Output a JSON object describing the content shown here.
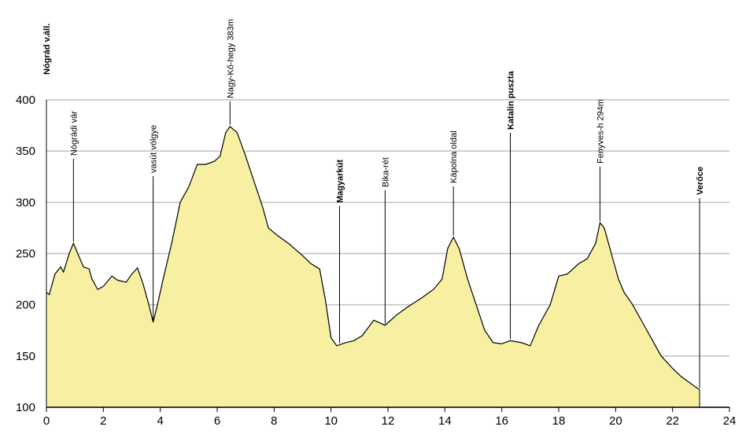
{
  "chart_data": {
    "type": "area",
    "color": "#f7f0a3",
    "x": [
      0,
      0.1,
      0.3,
      0.5,
      0.6,
      0.8,
      0.95,
      1.1,
      1.3,
      1.5,
      1.6,
      1.8,
      2.0,
      2.3,
      2.5,
      2.8,
      3.0,
      3.2,
      3.4,
      3.6,
      3.75,
      3.9,
      4.1,
      4.4,
      4.7,
      5.0,
      5.3,
      5.6,
      5.9,
      6.1,
      6.3,
      6.45,
      6.7,
      7.0,
      7.3,
      7.6,
      7.8,
      8.1,
      8.5,
      9.0,
      9.3,
      9.6,
      9.8,
      10.0,
      10.2,
      10.5,
      10.8,
      11.1,
      11.5,
      11.9,
      12.3,
      12.7,
      13.2,
      13.6,
      13.9,
      14.1,
      14.3,
      14.5,
      14.8,
      15.1,
      15.4,
      15.7,
      16.0,
      16.3,
      16.7,
      17.0,
      17.3,
      17.7,
      18.0,
      18.3,
      18.7,
      19.0,
      19.3,
      19.45,
      19.6,
      19.9,
      20.1,
      20.3,
      20.6,
      21.0,
      21.3,
      21.6,
      22.0,
      22.3,
      22.8,
      22.95
    ],
    "values": [
      212,
      210,
      230,
      237,
      232,
      250,
      260,
      250,
      237,
      235,
      225,
      215,
      218,
      228,
      224,
      222,
      230,
      236,
      220,
      200,
      183,
      200,
      225,
      260,
      300,
      315,
      337,
      337,
      340,
      345,
      368,
      374,
      368,
      345,
      320,
      295,
      275,
      268,
      260,
      248,
      240,
      235,
      205,
      168,
      160,
      163,
      165,
      170,
      185,
      180,
      190,
      198,
      207,
      215,
      225,
      255,
      266,
      255,
      225,
      200,
      175,
      163,
      162,
      165,
      163,
      160,
      180,
      200,
      228,
      230,
      240,
      245,
      260,
      280,
      275,
      245,
      225,
      212,
      200,
      180,
      165,
      150,
      138,
      130,
      120,
      117
    ],
    "xlim": [
      0,
      24
    ],
    "ylim": [
      100,
      400
    ],
    "xticks": [
      0,
      2,
      4,
      6,
      8,
      10,
      12,
      14,
      16,
      18,
      20,
      22,
      24
    ],
    "yticks": [
      100,
      150,
      200,
      250,
      300,
      350,
      400
    ],
    "grid": true,
    "annotations": [
      {
        "text": "Nógrád v.áll.",
        "x": 0,
        "bold": true
      },
      {
        "text": "Nógrádi vár",
        "x": 0.95,
        "bold": false
      },
      {
        "text": "vasút völgye",
        "x": 3.75,
        "bold": false
      },
      {
        "text": "Nagy-Kő-hegy  383m",
        "x": 6.45,
        "bold": false
      },
      {
        "text": "Magyarkút",
        "x": 10.3,
        "bold": true
      },
      {
        "text": "Bika-rét",
        "x": 11.9,
        "bold": false
      },
      {
        "text": "Kápolna oldal",
        "x": 14.3,
        "bold": false
      },
      {
        "text": "Katalin puszta",
        "x": 16.3,
        "bold": true
      },
      {
        "text": "Fenyves-h  294m",
        "x": 19.45,
        "bold": false
      },
      {
        "text": "Verőce",
        "x": 22.95,
        "bold": true
      }
    ]
  }
}
